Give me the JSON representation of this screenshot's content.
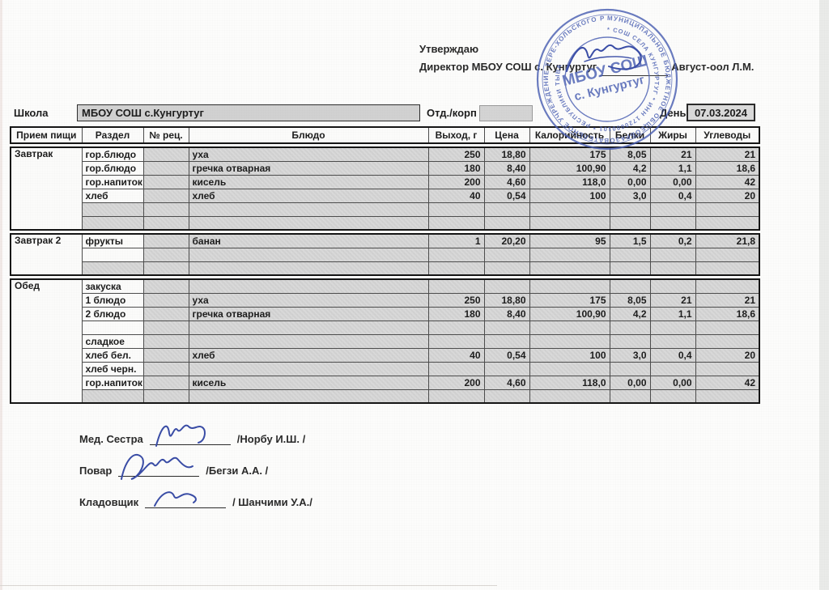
{
  "header": {
    "approve_label": "Утверждаю",
    "director_prefix": "Директор МБОУ СОШ с. Кунгуртуг",
    "director_name": "Август-оол Л.М."
  },
  "stamp": {
    "color": "#4a5fb2",
    "center_line1": "МБОУ СОШ",
    "center_line2": "с. Кунгуртуг",
    "ring_outer": "МУНИЦИПАЛЬНОЕ БЮДЖЕТНОЕ ОБЩЕОБРАЗОВАТЕЛЬНОЕ УЧРЕЖДЕНИЕ ТЕРЕ-ХОЛЬСКОГО РАЙОНА * ОГРН 1041700727",
    "ring_inner": "* СОШ СЕЛА КУНГУРТУГ * ИНН 1720000101 * РЕСПУБЛИКИ ТЫВА"
  },
  "school_row": {
    "school_label": "Школа",
    "school_value": "МБОУ СОШ с.Кунгуртуг",
    "dept_label": "Отд./корп",
    "dept_value": "",
    "day_label": "День",
    "day_value": "07.03.2024"
  },
  "table": {
    "headers": [
      "Прием пищи",
      "Раздел",
      "№ рец.",
      "Блюдо",
      "Выход, г",
      "Цена",
      "Калорийность",
      "Белки",
      "Жиры",
      "Углеводы"
    ],
    "sections": [
      {
        "meal": "Завтрак",
        "rows": [
          {
            "razdel": "гор.блюдо",
            "razdel_white": true,
            "dish": "уха",
            "out": "250",
            "price": "18,80",
            "cal": "175",
            "prot": "8,05",
            "fat": "21",
            "carb": "21"
          },
          {
            "razdel": "гор.блюдо",
            "razdel_white": true,
            "dish": "гречка отварная",
            "out": "180",
            "price": "8,40",
            "cal": "100,90",
            "prot": "4,2",
            "fat": "1,1",
            "carb": "18,6"
          },
          {
            "razdel": "гор.напиток",
            "razdel_white": true,
            "dish": "кисель",
            "out": "200",
            "price": "4,60",
            "cal": "118,0",
            "prot": "0,00",
            "fat": "0,00",
            "carb": "42"
          },
          {
            "razdel": "хлеб",
            "razdel_white": true,
            "dish": "хлеб",
            "out": "40",
            "price": "0,54",
            "cal": "100",
            "prot": "3,0",
            "fat": "0,4",
            "carb": "20"
          },
          {},
          {}
        ]
      },
      {
        "meal": "Завтрак 2",
        "rows": [
          {
            "razdel": "фрукты",
            "razdel_white": true,
            "dish": "банан",
            "out": "1",
            "price": "20,20",
            "cal": "95",
            "prot": "1,5",
            "fat": "0,2",
            "carb": "21,8"
          },
          {
            "razdel_white": true
          },
          {}
        ]
      },
      {
        "meal": "Обед",
        "rows": [
          {
            "razdel": "закуска",
            "razdel_white": true
          },
          {
            "razdel": "1 блюдо",
            "razdel_white": true,
            "dish": "уха",
            "out": "250",
            "price": "18,80",
            "cal": "175",
            "prot": "8,05",
            "fat": "21",
            "carb": "21"
          },
          {
            "razdel": "2 блюдо",
            "razdel_white": true,
            "dish": "гречка отварная",
            "out": "180",
            "price": "8,40",
            "cal": "100,90",
            "prot": "4,2",
            "fat": "1,1",
            "carb": "18,6"
          },
          {
            "razdel_white": true
          },
          {
            "razdel": "сладкое",
            "razdel_white": true
          },
          {
            "razdel": "хлеб бел.",
            "razdel_white": true,
            "dish": "хлеб",
            "out": "40",
            "price": "0,54",
            "cal": "100",
            "prot": "3,0",
            "fat": "0,4",
            "carb": "20"
          },
          {
            "razdel": "хлеб черн.",
            "razdel_white": true
          },
          {
            "razdel": "гор.напиток",
            "razdel_white": true,
            "dish": "кисель",
            "out": "200",
            "price": "4,60",
            "cal": "118,0",
            "prot": "0,00",
            "fat": "0,00",
            "carb": "42"
          },
          {}
        ]
      }
    ]
  },
  "signatures": [
    {
      "role": "Мед. Сестра",
      "name": "/Норбу И.Ш. /"
    },
    {
      "role": "Повар",
      "name": "/Бегзи А.А. /"
    },
    {
      "role": "Кладовщик",
      "name": "/ Шанчими У.А./"
    }
  ],
  "ink_color": "#3a4da6"
}
